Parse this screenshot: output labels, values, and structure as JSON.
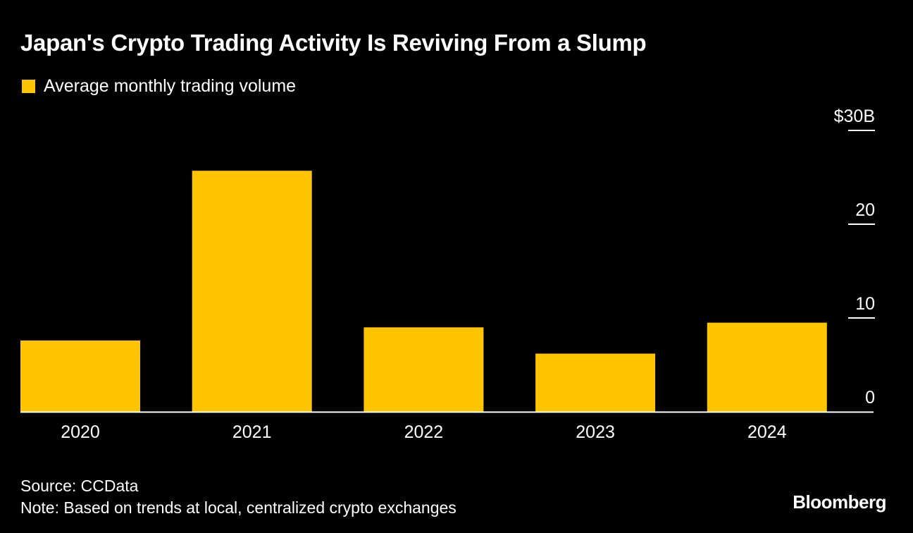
{
  "title": "Japan's Crypto Trading Activity Is Reviving From a Slump",
  "legend": {
    "label": "Average monthly trading volume",
    "color": "#ffc400"
  },
  "footer": {
    "source": "Source: CCData",
    "note": "Note: Based on trends at local, centralized crypto exchanges"
  },
  "brand": "Bloomberg",
  "chart_data": {
    "type": "bar",
    "title": "Japan's Crypto Trading Activity Is Reviving From a Slump",
    "categories": [
      "2020",
      "2021",
      "2022",
      "2023",
      "2024"
    ],
    "series": [
      {
        "name": "Average monthly trading volume",
        "values": [
          7.6,
          25.7,
          9.0,
          6.2,
          9.5
        ],
        "color": "#ffc400"
      }
    ],
    "ylim": [
      0,
      30
    ],
    "yticks": [
      0,
      10,
      20,
      30
    ],
    "ytick_labels": [
      "0",
      "10",
      "20",
      "$30B"
    ],
    "axis_position": "right",
    "grid": false,
    "legend_position": "top-left",
    "background": "#000000",
    "text_color": "#ffffff"
  }
}
